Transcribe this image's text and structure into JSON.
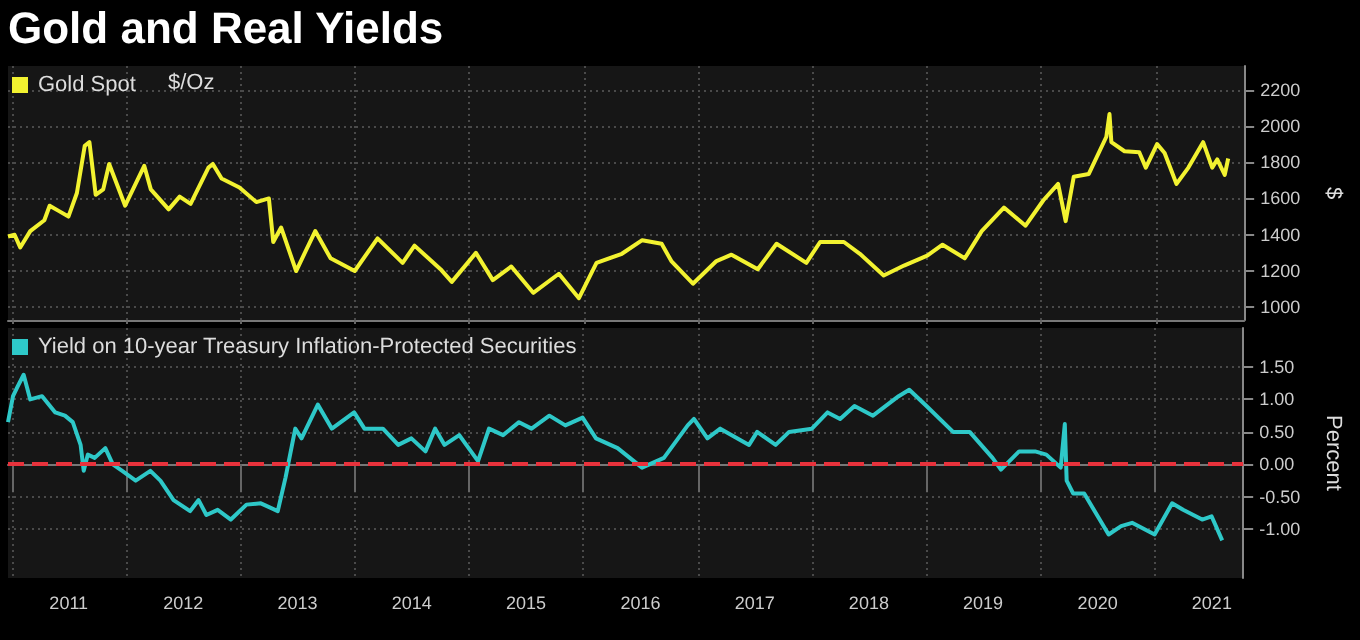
{
  "chart_data": [
    {
      "type": "line",
      "title": "Gold and Real Yields",
      "ylabel": "$",
      "annotations": [
        "$/Oz"
      ],
      "legend": "top left",
      "grid": true,
      "marker": "none",
      "line_style": "solid",
      "tick_labels": "y",
      "xlim": [
        "2010-12-20",
        "2021-10-10"
      ],
      "xticks": [
        {
          "value": "2011-01-01",
          "label": null
        },
        {
          "value": "2012-01-01",
          "label": null
        },
        {
          "value": "2013-01-01",
          "label": null
        },
        {
          "value": "2014-01-01",
          "label": null
        },
        {
          "value": "2015-01-01",
          "label": null
        },
        {
          "value": "2016-01-01",
          "label": null
        },
        {
          "value": "2017-01-01",
          "label": null
        },
        {
          "value": "2018-01-01",
          "label": null
        },
        {
          "value": "2019-01-01",
          "label": null
        },
        {
          "value": "2020-01-01",
          "label": null
        },
        {
          "value": "2021-01-01",
          "label": null
        }
      ],
      "ylim": [
        930,
        2330
      ],
      "yticks": [
        1000,
        1200,
        1400,
        1600,
        1800,
        2000,
        2200
      ],
      "series": [
        {
          "name": "Gold Spot",
          "color": "#f2f230",
          "x": [
            "2010-12-20",
            "2011-01-10",
            "2011-01-28",
            "2011-03-01",
            "2011-04-15",
            "2011-05-02",
            "2011-06-01",
            "2011-07-01",
            "2011-07-28",
            "2011-08-22",
            "2011-09-06",
            "2011-09-26",
            "2011-10-20",
            "2011-11-08",
            "2011-12-29",
            "2012-02-28",
            "2012-03-20",
            "2012-05-16",
            "2012-06-20",
            "2012-07-25",
            "2012-09-20",
            "2012-10-04",
            "2012-11-01",
            "2012-12-28",
            "2013-02-20",
            "2013-04-01",
            "2013-04-15",
            "2013-05-10",
            "2013-06-27",
            "2013-08-27",
            "2013-10-15",
            "2013-12-31",
            "2014-03-14",
            "2014-06-02",
            "2014-07-10",
            "2014-10-01",
            "2014-11-06",
            "2015-01-22",
            "2015-03-17",
            "2015-05-15",
            "2015-07-24",
            "2015-10-14",
            "2015-12-17",
            "2016-02-11",
            "2016-05-02",
            "2016-07-06",
            "2016-09-06",
            "2016-10-07",
            "2016-12-15",
            "2017-02-28",
            "2017-04-17",
            "2017-07-10",
            "2017-09-08",
            "2017-12-12",
            "2018-01-25",
            "2018-04-11",
            "2018-06-01",
            "2018-08-16",
            "2018-10-20",
            "2019-01-02",
            "2019-02-20",
            "2019-05-02",
            "2019-06-25",
            "2019-09-04",
            "2019-11-12",
            "2020-01-08",
            "2020-02-24",
            "2020-03-19",
            "2020-04-14",
            "2020-06-01",
            "2020-07-27",
            "2020-08-06",
            "2020-08-12",
            "2020-09-23",
            "2020-11-09",
            "2020-11-30",
            "2021-01-05",
            "2021-01-29",
            "2021-03-08",
            "2021-04-15",
            "2021-06-01",
            "2021-06-30",
            "2021-07-16",
            "2021-08-09",
            "2021-08-20"
          ],
          "values": [
            1390,
            1400,
            1330,
            1420,
            1480,
            1560,
            1530,
            1500,
            1630,
            1890,
            1910,
            1620,
            1650,
            1790,
            1560,
            1780,
            1650,
            1540,
            1610,
            1570,
            1770,
            1790,
            1710,
            1660,
            1580,
            1600,
            1360,
            1440,
            1200,
            1420,
            1270,
            1200,
            1380,
            1245,
            1340,
            1210,
            1140,
            1300,
            1150,
            1225,
            1080,
            1185,
            1050,
            1245,
            1295,
            1370,
            1350,
            1255,
            1130,
            1255,
            1290,
            1210,
            1350,
            1245,
            1360,
            1360,
            1295,
            1175,
            1230,
            1285,
            1345,
            1270,
            1420,
            1550,
            1450,
            1590,
            1680,
            1475,
            1720,
            1735,
            1940,
            2065,
            1910,
            1860,
            1855,
            1770,
            1900,
            1850,
            1680,
            1770,
            1910,
            1770,
            1815,
            1730,
            1820
          ]
        }
      ]
    },
    {
      "type": "line",
      "ylabel": "Percent",
      "legend": "top left",
      "grid": true,
      "marker": "none",
      "line_style": "solid",
      "xlim": [
        "2010-12-20",
        "2021-10-10"
      ],
      "xticks": [
        {
          "value": "2011-01-01",
          "label": null
        },
        {
          "value": "2011-07-02",
          "label": "2011"
        },
        {
          "value": "2012-01-01",
          "label": null
        },
        {
          "value": "2012-07-02",
          "label": "2012"
        },
        {
          "value": "2013-01-01",
          "label": null
        },
        {
          "value": "2013-07-02",
          "label": "2013"
        },
        {
          "value": "2014-01-01",
          "label": null
        },
        {
          "value": "2014-07-02",
          "label": "2014"
        },
        {
          "value": "2015-01-01",
          "label": null
        },
        {
          "value": "2015-07-02",
          "label": "2015"
        },
        {
          "value": "2016-01-01",
          "label": null
        },
        {
          "value": "2016-07-02",
          "label": "2016"
        },
        {
          "value": "2017-01-01",
          "label": null
        },
        {
          "value": "2017-07-02",
          "label": "2017"
        },
        {
          "value": "2018-01-01",
          "label": null
        },
        {
          "value": "2018-07-02",
          "label": "2018"
        },
        {
          "value": "2019-01-01",
          "label": null
        },
        {
          "value": "2019-07-02",
          "label": "2019"
        },
        {
          "value": "2020-01-01",
          "label": null
        },
        {
          "value": "2020-07-02",
          "label": "2020"
        },
        {
          "value": "2021-01-01",
          "label": null
        },
        {
          "value": "2021-07-02",
          "label": "2021"
        }
      ],
      "ylim": [
        -1.75,
        2.1
      ],
      "yticks": [
        {
          "value": -1,
          "label": "-1.00"
        },
        {
          "value": -0.5,
          "label": "-0.50"
        },
        {
          "value": 0,
          "label": "0.00"
        },
        {
          "value": 0.5,
          "label": "0.50"
        },
        {
          "value": 1,
          "label": "1.00"
        },
        {
          "value": 1.5,
          "label": "1.50"
        }
      ],
      "ref_lines": [
        {
          "axis": "y",
          "value": 0,
          "color": "#e8323c",
          "line_style": "dashed"
        }
      ],
      "series": [
        {
          "name": "Yield on 10-year Treasury Inflation-Protected Securities",
          "color": "#2ec8c8",
          "x": [
            "2010-12-20",
            "2011-01-05",
            "2011-01-20",
            "2011-02-08",
            "2011-03-01",
            "2011-04-08",
            "2011-05-20",
            "2011-06-20",
            "2011-07-15",
            "2011-08-09",
            "2011-08-19",
            "2011-09-01",
            "2011-09-23",
            "2011-10-27",
            "2011-11-20",
            "2011-12-20",
            "2012-02-01",
            "2012-03-19",
            "2012-04-20",
            "2012-06-01",
            "2012-07-24",
            "2012-08-20",
            "2012-09-14",
            "2012-10-20",
            "2012-12-01",
            "2013-01-20",
            "2013-03-07",
            "2013-04-30",
            "2013-05-25",
            "2013-06-25",
            "2013-07-15",
            "2013-09-05",
            "2013-10-20",
            "2013-12-30",
            "2014-02-01",
            "2014-04-01",
            "2014-05-20",
            "2014-07-01",
            "2014-08-15",
            "2014-09-15",
            "2014-10-15",
            "2014-12-01",
            "2015-01-30",
            "2015-03-06",
            "2015-04-20",
            "2015-06-10",
            "2015-07-20",
            "2015-09-15",
            "2015-11-05",
            "2015-12-30",
            "2016-02-11",
            "2016-04-20",
            "2016-07-07",
            "2016-09-15",
            "2016-11-30",
            "2016-12-20",
            "2017-02-01",
            "2017-03-14",
            "2017-06-14",
            "2017-07-10",
            "2017-09-07",
            "2017-10-20",
            "2018-01-01",
            "2018-02-20",
            "2018-04-01",
            "2018-05-17",
            "2018-07-15",
            "2018-10-05",
            "2018-11-08",
            "2019-01-02",
            "2019-03-28",
            "2019-05-20",
            "2019-08-01",
            "2019-08-28",
            "2019-10-25",
            "2019-12-15",
            "2020-01-20",
            "2020-03-06",
            "2020-03-19",
            "2020-03-25",
            "2020-04-15",
            "2020-05-20",
            "2020-08-06",
            "2020-09-15",
            "2020-10-20",
            "2020-12-31",
            "2021-02-25",
            "2021-04-01",
            "2021-06-01",
            "2021-07-01",
            "2021-08-04"
          ],
          "values": [
            0.65,
            1.05,
            1.2,
            1.38,
            1.0,
            1.05,
            0.8,
            0.75,
            0.65,
            0.3,
            -0.1,
            0.15,
            0.1,
            0.25,
            0.0,
            -0.1,
            -0.25,
            -0.1,
            -0.25,
            -0.55,
            -0.72,
            -0.55,
            -0.78,
            -0.7,
            -0.85,
            -0.62,
            -0.6,
            -0.72,
            -0.2,
            0.55,
            0.4,
            0.92,
            0.55,
            0.8,
            0.55,
            0.55,
            0.3,
            0.4,
            0.2,
            0.55,
            0.3,
            0.45,
            0.05,
            0.55,
            0.45,
            0.65,
            0.55,
            0.75,
            0.6,
            0.72,
            0.4,
            0.25,
            -0.05,
            0.1,
            0.6,
            0.7,
            0.4,
            0.55,
            0.3,
            0.5,
            0.3,
            0.5,
            0.55,
            0.8,
            0.7,
            0.9,
            0.75,
            1.05,
            1.15,
            0.9,
            0.5,
            0.5,
            0.1,
            -0.08,
            0.2,
            0.2,
            0.15,
            -0.05,
            0.62,
            -0.25,
            -0.45,
            -0.45,
            -1.08,
            -0.95,
            -0.9,
            -1.08,
            -0.6,
            -0.7,
            -0.85,
            -0.8,
            -1.17
          ]
        }
      ]
    }
  ]
}
